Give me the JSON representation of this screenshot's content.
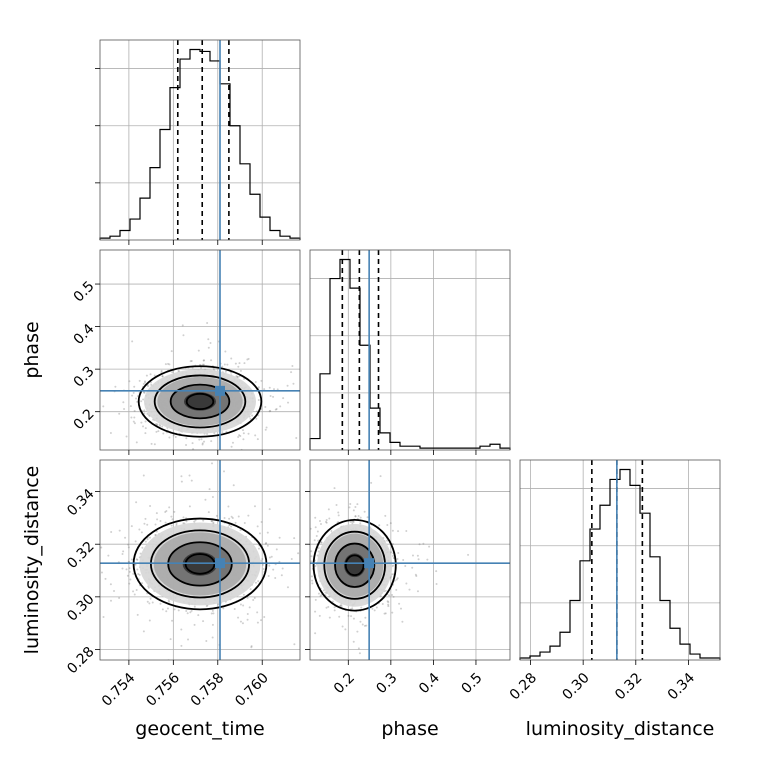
{
  "chart_data": {
    "type": "corner",
    "parameters": [
      "geocent_time",
      "phase",
      "luminosity_distance"
    ],
    "axis_labels": [
      "geocent_time",
      "phase",
      "luminosity_distance"
    ],
    "ranges": [
      [
        0.7527,
        0.7617
      ],
      [
        0.11,
        0.58
      ],
      [
        0.276,
        0.352
      ]
    ],
    "ticks": [
      [
        "0.754",
        "0.756",
        "0.758",
        "0.760"
      ],
      [
        "0.2",
        "0.3",
        "0.4",
        "0.5"
      ],
      [
        "0.28",
        "0.30",
        "0.32",
        "0.34"
      ]
    ],
    "truths": [
      0.7581,
      0.249,
      0.3128
    ],
    "truth_color": "#4682b4",
    "quantiles": [
      [
        0.7562,
        0.7573,
        0.7585
      ],
      [
        0.186,
        0.226,
        0.271
      ],
      [
        0.3033,
        0.3128,
        0.3225
      ]
    ],
    "histograms": [
      {
        "edges_start": 0.7527,
        "bin_width": 0.00045,
        "counts": [
          1,
          2,
          5,
          11,
          22,
          38,
          58,
          80,
          95,
          100,
          99,
          94,
          82,
          60,
          40,
          24,
          12,
          5,
          2,
          1
        ]
      },
      {
        "edges_start": 0.11,
        "bin_width": 0.0235,
        "counts": [
          6,
          40,
          90,
          100,
          85,
          55,
          22,
          9,
          4,
          2,
          2,
          1,
          1,
          1,
          1,
          1,
          1,
          2,
          3,
          1
        ]
      },
      {
        "edges_start": 0.276,
        "bin_width": 0.0038,
        "counts": [
          1,
          2,
          4,
          7,
          14,
          30,
          50,
          66,
          78,
          91,
          96,
          88,
          74,
          52,
          30,
          16,
          8,
          3,
          1,
          1
        ]
      }
    ],
    "scatter_pairs": [
      {
        "x": "geocent_time",
        "y": "phase",
        "center": [
          0.7572,
          0.224
        ],
        "spread": [
          0.0012,
          0.036
        ]
      },
      {
        "x": "geocent_time",
        "y": "luminosity_distance",
        "center": [
          0.7572,
          0.3125
        ],
        "spread": [
          0.0013,
          0.0075
        ]
      },
      {
        "x": "phase",
        "y": "luminosity_distance",
        "center": [
          0.215,
          0.312
        ],
        "spread": [
          0.042,
          0.0075
        ]
      }
    ],
    "grid": true,
    "series_color": "#000000"
  }
}
